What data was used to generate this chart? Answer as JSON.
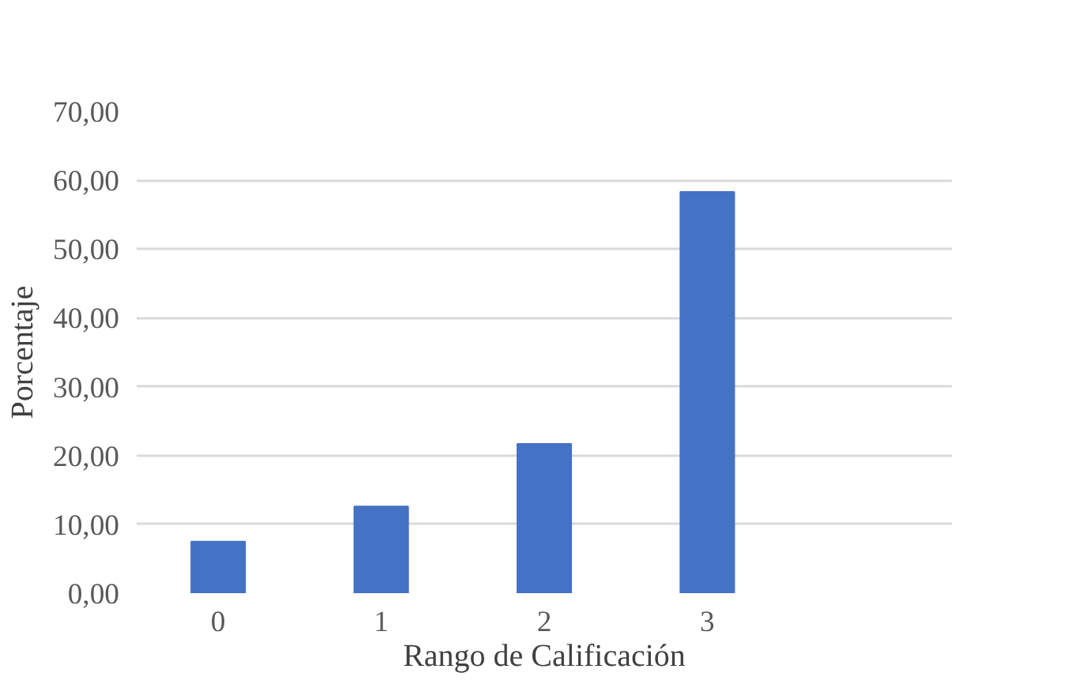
{
  "chart_data": {
    "type": "bar",
    "xlabel": "Rango de Calificación",
    "ylabel": "Porcentaje",
    "categories": [
      "0",
      "1",
      "2",
      "3",
      null
    ],
    "values": [
      7.5,
      12.6,
      21.7,
      58.3,
      null
    ],
    "color": "#4472c4",
    "ylim": [
      0,
      70
    ],
    "yticks": [
      {
        "value": 0,
        "label": "0,00"
      },
      {
        "value": 10,
        "label": "10,00"
      },
      {
        "value": 20,
        "label": "20,00"
      },
      {
        "value": 30,
        "label": "30,00"
      },
      {
        "value": 40,
        "label": "40,00"
      },
      {
        "value": 50,
        "label": "50,00"
      },
      {
        "value": 60,
        "label": "60,00"
      },
      {
        "value": 70,
        "label": "70,00"
      }
    ],
    "grid": "y"
  }
}
